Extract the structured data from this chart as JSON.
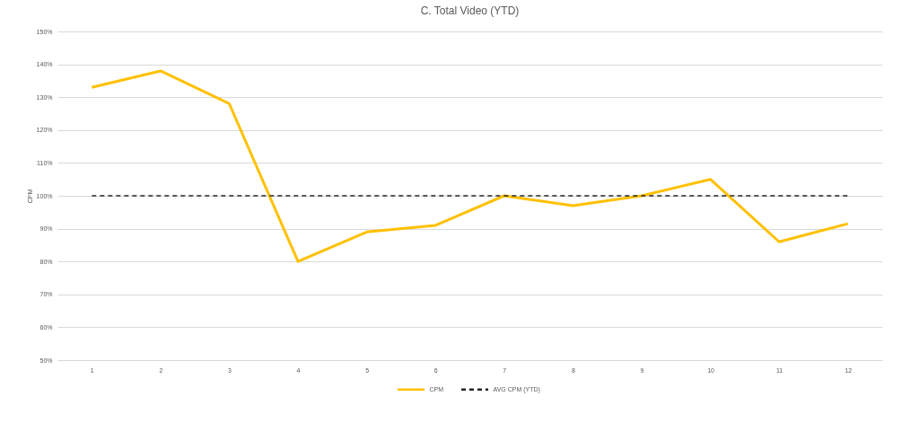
{
  "chart_data": {
    "type": "line",
    "title": "C.  Total Video (YTD)",
    "ylabel": "CPM",
    "categories": [
      "1",
      "2",
      "3",
      "4",
      "5",
      "6",
      "7",
      "8",
      "9",
      "10",
      "11",
      "12"
    ],
    "series": [
      {
        "name": "CPM",
        "color": "#ffc000",
        "values": [
          133,
          138,
          128,
          80,
          89,
          91,
          100,
          97,
          100,
          105,
          86,
          91.5
        ]
      },
      {
        "name": "AVG CPM (YTD)",
        "color": "#262626",
        "line_style": "dashed",
        "values": [
          100,
          100,
          100,
          100,
          100,
          100,
          100,
          100,
          100,
          100,
          100,
          100
        ]
      }
    ],
    "ylim": [
      50,
      150
    ],
    "yticks": [
      {
        "value": 50,
        "label": "50%"
      },
      {
        "value": 60,
        "label": "60%"
      },
      {
        "value": 70,
        "label": "70%"
      },
      {
        "value": 80,
        "label": "80%"
      },
      {
        "value": 90,
        "label": "90%"
      },
      {
        "value": 100,
        "label": "100%"
      },
      {
        "value": 110,
        "label": "110%"
      },
      {
        "value": 120,
        "label": "120%"
      },
      {
        "value": 130,
        "label": "130%"
      },
      {
        "value": 140,
        "label": "140%"
      },
      {
        "value": 150,
        "label": "150%"
      }
    ],
    "grid": "y",
    "legend": "bottom"
  }
}
